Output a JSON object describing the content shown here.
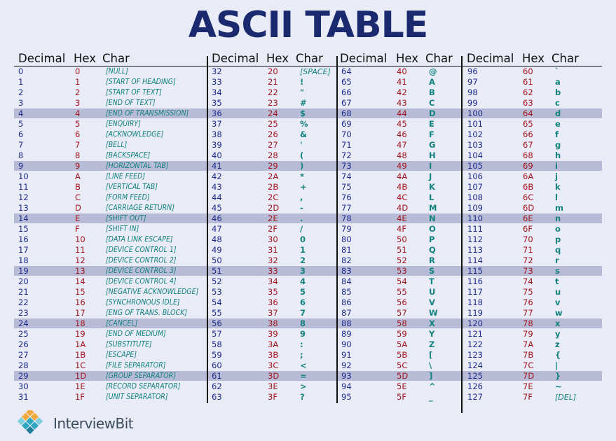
{
  "title": "ASCII TABLE",
  "headers": {
    "decimal": "Decimal",
    "hex": "Hex",
    "char": "Char"
  },
  "brand": "InterviewBit",
  "colors": {
    "background": "#e9ebf6",
    "title": "#1b2a6e",
    "decimal": "#1b2a8c",
    "hex": "#a1141c",
    "char": "#12827e",
    "stripe": "#b8bbd6"
  },
  "highlight_rows": [
    4,
    9,
    14,
    19,
    24,
    29
  ],
  "columns": [
    {
      "rows": [
        {
          "dec": "0",
          "hex": "0",
          "char": "[NULL]"
        },
        {
          "dec": "1",
          "hex": "1",
          "char": "[START OF HEADING]"
        },
        {
          "dec": "2",
          "hex": "2",
          "char": "[START OF TEXT]"
        },
        {
          "dec": "3",
          "hex": "3",
          "char": "[END OF TEXT]"
        },
        {
          "dec": "4",
          "hex": "4",
          "char": "[END OF TRANSMISSION]"
        },
        {
          "dec": "5",
          "hex": "5",
          "char": "[ENQUIRY]"
        },
        {
          "dec": "6",
          "hex": "6",
          "char": "[ACKNOWLEDGE]"
        },
        {
          "dec": "7",
          "hex": "7",
          "char": "[BELL]"
        },
        {
          "dec": "8",
          "hex": "8",
          "char": "[BACKSPACE]"
        },
        {
          "dec": "9",
          "hex": "9",
          "char": "[HORIZONTAL TAB]"
        },
        {
          "dec": "10",
          "hex": "A",
          "char": "[LINE FEED]"
        },
        {
          "dec": "11",
          "hex": "B",
          "char": "[VERTICAL TAB]"
        },
        {
          "dec": "12",
          "hex": "C",
          "char": "[FORM FEED]"
        },
        {
          "dec": "13",
          "hex": "D",
          "char": "[CARRIAGE RETURN]"
        },
        {
          "dec": "14",
          "hex": "E",
          "char": "[SHIFT OUT]"
        },
        {
          "dec": "15",
          "hex": "F",
          "char": "[SHIFT IN]"
        },
        {
          "dec": "16",
          "hex": "10",
          "char": "[DATA LINK ESCAPE]"
        },
        {
          "dec": "17",
          "hex": "11",
          "char": "[DEVICE CONTROL 1]"
        },
        {
          "dec": "18",
          "hex": "12",
          "char": "[DEVICE CONTROL 2]"
        },
        {
          "dec": "19",
          "hex": "13",
          "char": "[DEVICE CONTROL 3]"
        },
        {
          "dec": "20",
          "hex": "14",
          "char": "[DEVICE CONTROL 4]"
        },
        {
          "dec": "21",
          "hex": "15",
          "char": "[NEGATIVE ACKNOWLEDGE]"
        },
        {
          "dec": "22",
          "hex": "16",
          "char": "[SYNCHRONOUS IDLE]"
        },
        {
          "dec": "23",
          "hex": "17",
          "char": "[ENG OF TRANS. BLOCK]"
        },
        {
          "dec": "24",
          "hex": "18",
          "char": "[CANCEL]"
        },
        {
          "dec": "25",
          "hex": "19",
          "char": "[END OF MEDIUM]"
        },
        {
          "dec": "26",
          "hex": "1A",
          "char": "[SUBSTITUTE]"
        },
        {
          "dec": "27",
          "hex": "1B",
          "char": "[ESCAPE]"
        },
        {
          "dec": "28",
          "hex": "1C",
          "char": "[FILE SEPARATOR]"
        },
        {
          "dec": "29",
          "hex": "1D",
          "char": "[GROUP SEPARATOR]"
        },
        {
          "dec": "30",
          "hex": "1E",
          "char": "[RECORD SEPARATOR]"
        },
        {
          "dec": "31",
          "hex": "1F",
          "char": "[UNIT SEPARATOR]"
        }
      ]
    },
    {
      "rows": [
        {
          "dec": "32",
          "hex": "20",
          "char": "[SPACE]"
        },
        {
          "dec": "33",
          "hex": "21",
          "char": "!"
        },
        {
          "dec": "34",
          "hex": "22",
          "char": "\""
        },
        {
          "dec": "35",
          "hex": "23",
          "char": "#"
        },
        {
          "dec": "36",
          "hex": "24",
          "char": "$"
        },
        {
          "dec": "37",
          "hex": "25",
          "char": "%"
        },
        {
          "dec": "38",
          "hex": "26",
          "char": "&"
        },
        {
          "dec": "39",
          "hex": "27",
          "char": "'"
        },
        {
          "dec": "40",
          "hex": "28",
          "char": "("
        },
        {
          "dec": "41",
          "hex": "29",
          "char": ")"
        },
        {
          "dec": "42",
          "hex": "2A",
          "char": "*"
        },
        {
          "dec": "43",
          "hex": "2B",
          "char": "+"
        },
        {
          "dec": "44",
          "hex": "2C",
          "char": ","
        },
        {
          "dec": "45",
          "hex": "2D",
          "char": "-"
        },
        {
          "dec": "46",
          "hex": "2E",
          "char": "."
        },
        {
          "dec": "47",
          "hex": "2F",
          "char": "/"
        },
        {
          "dec": "48",
          "hex": "30",
          "char": "0"
        },
        {
          "dec": "49",
          "hex": "31",
          "char": "1"
        },
        {
          "dec": "50",
          "hex": "32",
          "char": "2"
        },
        {
          "dec": "51",
          "hex": "33",
          "char": "3"
        },
        {
          "dec": "52",
          "hex": "34",
          "char": "4"
        },
        {
          "dec": "53",
          "hex": "35",
          "char": "5"
        },
        {
          "dec": "54",
          "hex": "36",
          "char": "6"
        },
        {
          "dec": "55",
          "hex": "37",
          "char": "7"
        },
        {
          "dec": "56",
          "hex": "38",
          "char": "8"
        },
        {
          "dec": "57",
          "hex": "39",
          "char": "9"
        },
        {
          "dec": "58",
          "hex": "3A",
          "char": ":"
        },
        {
          "dec": "59",
          "hex": "3B",
          "char": ";"
        },
        {
          "dec": "60",
          "hex": "3C",
          "char": "<"
        },
        {
          "dec": "61",
          "hex": "3D",
          "char": "="
        },
        {
          "dec": "62",
          "hex": "3E",
          "char": ">"
        },
        {
          "dec": "63",
          "hex": "3F",
          "char": "?"
        }
      ]
    },
    {
      "rows": [
        {
          "dec": "64",
          "hex": "40",
          "char": "@"
        },
        {
          "dec": "65",
          "hex": "41",
          "char": "A"
        },
        {
          "dec": "66",
          "hex": "42",
          "char": "B"
        },
        {
          "dec": "67",
          "hex": "43",
          "char": "C"
        },
        {
          "dec": "68",
          "hex": "44",
          "char": "D"
        },
        {
          "dec": "69",
          "hex": "45",
          "char": "E"
        },
        {
          "dec": "70",
          "hex": "46",
          "char": "F"
        },
        {
          "dec": "71",
          "hex": "47",
          "char": "G"
        },
        {
          "dec": "72",
          "hex": "48",
          "char": "H"
        },
        {
          "dec": "73",
          "hex": "49",
          "char": "I"
        },
        {
          "dec": "74",
          "hex": "4A",
          "char": "J"
        },
        {
          "dec": "75",
          "hex": "4B",
          "char": "K"
        },
        {
          "dec": "76",
          "hex": "4C",
          "char": "L"
        },
        {
          "dec": "77",
          "hex": "4D",
          "char": "M"
        },
        {
          "dec": "78",
          "hex": "4E",
          "char": "N"
        },
        {
          "dec": "79",
          "hex": "4F",
          "char": "O"
        },
        {
          "dec": "80",
          "hex": "50",
          "char": "P"
        },
        {
          "dec": "81",
          "hex": "51",
          "char": "Q"
        },
        {
          "dec": "82",
          "hex": "52",
          "char": "R"
        },
        {
          "dec": "83",
          "hex": "53",
          "char": "S"
        },
        {
          "dec": "84",
          "hex": "54",
          "char": "T"
        },
        {
          "dec": "85",
          "hex": "55",
          "char": "U"
        },
        {
          "dec": "86",
          "hex": "56",
          "char": "V"
        },
        {
          "dec": "87",
          "hex": "57",
          "char": "W"
        },
        {
          "dec": "88",
          "hex": "58",
          "char": "X"
        },
        {
          "dec": "89",
          "hex": "59",
          "char": "Y"
        },
        {
          "dec": "90",
          "hex": "5A",
          "char": "Z"
        },
        {
          "dec": "91",
          "hex": "5B",
          "char": "["
        },
        {
          "dec": "92",
          "hex": "5C",
          "char": "\\"
        },
        {
          "dec": "93",
          "hex": "5D",
          "char": "]"
        },
        {
          "dec": "94",
          "hex": "5E",
          "char": "^"
        },
        {
          "dec": "95",
          "hex": "5F",
          "char": "_"
        }
      ]
    },
    {
      "rows": [
        {
          "dec": "96",
          "hex": "60",
          "char": "`"
        },
        {
          "dec": "97",
          "hex": "61",
          "char": "a"
        },
        {
          "dec": "98",
          "hex": "62",
          "char": "b"
        },
        {
          "dec": "99",
          "hex": "63",
          "char": "c"
        },
        {
          "dec": "100",
          "hex": "64",
          "char": "d"
        },
        {
          "dec": "101",
          "hex": "65",
          "char": "e"
        },
        {
          "dec": "102",
          "hex": "66",
          "char": "f"
        },
        {
          "dec": "103",
          "hex": "67",
          "char": "g"
        },
        {
          "dec": "104",
          "hex": "68",
          "char": "h"
        },
        {
          "dec": "105",
          "hex": "69",
          "char": "i"
        },
        {
          "dec": "106",
          "hex": "6A",
          "char": "j"
        },
        {
          "dec": "107",
          "hex": "6B",
          "char": "k"
        },
        {
          "dec": "108",
          "hex": "6C",
          "char": "l"
        },
        {
          "dec": "109",
          "hex": "6D",
          "char": "m"
        },
        {
          "dec": "110",
          "hex": "6E",
          "char": "n"
        },
        {
          "dec": "111",
          "hex": "6F",
          "char": "o"
        },
        {
          "dec": "112",
          "hex": "70",
          "char": "p"
        },
        {
          "dec": "113",
          "hex": "71",
          "char": "q"
        },
        {
          "dec": "114",
          "hex": "72",
          "char": "r"
        },
        {
          "dec": "115",
          "hex": "73",
          "char": "s"
        },
        {
          "dec": "116",
          "hex": "74",
          "char": "t"
        },
        {
          "dec": "117",
          "hex": "75",
          "char": "u"
        },
        {
          "dec": "118",
          "hex": "76",
          "char": "v"
        },
        {
          "dec": "119",
          "hex": "77",
          "char": "w"
        },
        {
          "dec": "120",
          "hex": "78",
          "char": "x"
        },
        {
          "dec": "121",
          "hex": "79",
          "char": "y"
        },
        {
          "dec": "122",
          "hex": "7A",
          "char": "z"
        },
        {
          "dec": "123",
          "hex": "7B",
          "char": "{"
        },
        {
          "dec": "124",
          "hex": "7C",
          "char": "|"
        },
        {
          "dec": "125",
          "hex": "7D",
          "char": "}"
        },
        {
          "dec": "126",
          "hex": "7E",
          "char": "~"
        },
        {
          "dec": "127",
          "hex": "7F",
          "char": "[DEL]"
        }
      ]
    }
  ]
}
